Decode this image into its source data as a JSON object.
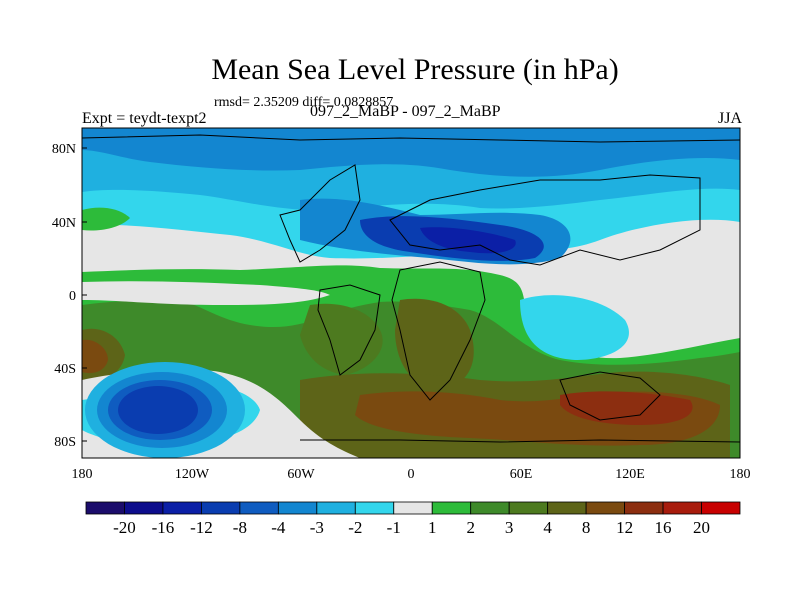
{
  "title": "Mean Sea Level Pressure (in hPa)",
  "stats_line": "rmsd= 2.35209 diff= 0.0828857",
  "left_label": "Expt = teydt-texpt2",
  "center_label": "097_2_MaBP - 097_2_MaBP",
  "right_label": "JJA",
  "lat_ticks": [
    "80N",
    "40N",
    "0",
    "40S",
    "80S"
  ],
  "lon_ticks": [
    "180",
    "120W",
    "60W",
    "0",
    "60E",
    "120E",
    "180"
  ],
  "colorbar": {
    "colors": [
      "#1b0c6b",
      "#0d0d8c",
      "#0b1fa6",
      "#0a3db0",
      "#0f5cc0",
      "#1386d0",
      "#1fb0e0",
      "#33d6ec",
      "#e6e6e6",
      "#2dbb3a",
      "#3e8a2a",
      "#4d7a1f",
      "#5d6418",
      "#7a4a10",
      "#8c2e10",
      "#a81c0d",
      "#c80000"
    ],
    "labels": [
      "-20",
      "-16",
      "-12",
      "-8",
      "-4",
      "-3",
      "-2",
      "-1",
      "1",
      "2",
      "3",
      "4",
      "8",
      "12",
      "16",
      "20"
    ]
  }
}
